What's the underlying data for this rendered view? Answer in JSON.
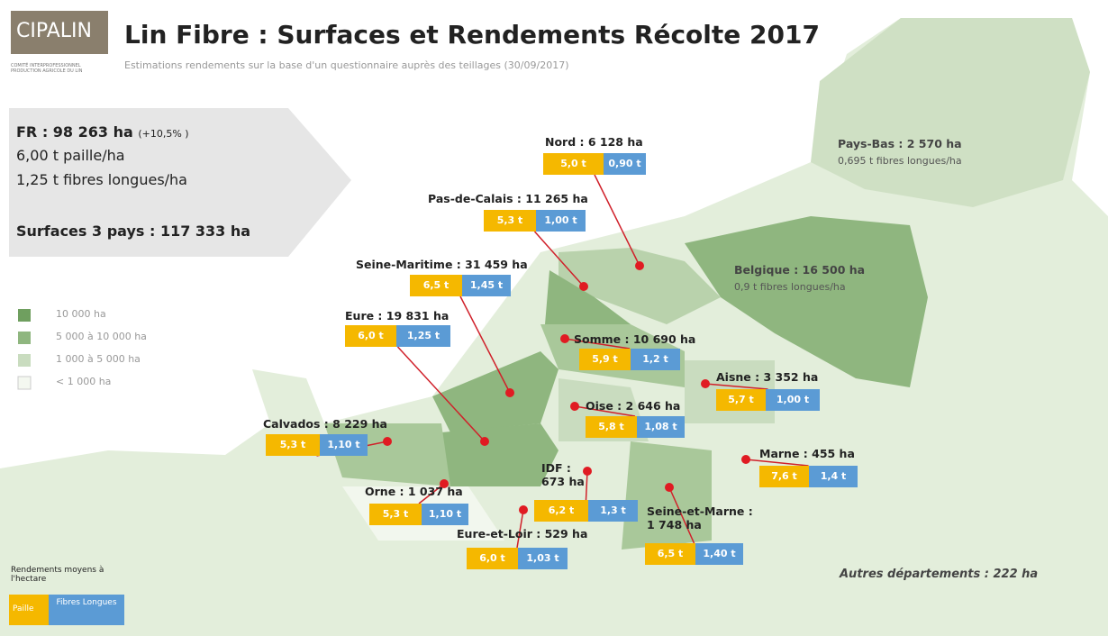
{
  "header": {
    "logo": "CIPALIN",
    "logo_sub": "COMITÉ INTERPROFESSIONNEL PRODUCTION AGRICOLE DU LIN",
    "title": "Lin Fibre : Surfaces et Rendements Récolte 2017",
    "subtitle": "Estimations rendements sur la base d'un questionnaire auprès des teillages (30/09/2017)"
  },
  "summary": {
    "fr": "FR : 98 263 ha",
    "fr_change": "(+10,5% )",
    "straw": "6,00 t paille/ha",
    "fibre": "1,25 t fibres longues/ha",
    "total": "Surfaces 3 pays : 117 333 ha"
  },
  "area_legend": [
    "10 000 ha",
    "5 000 à 10 000 ha",
    "1 000 à 5 000 ha",
    "< 1 000 ha"
  ],
  "yield_legend": {
    "title": "Rendements moyens à l'hectare",
    "straw": "Paille",
    "fibre": "Fibres Longues"
  },
  "countries": [
    {
      "label": "Pays-Bas : 2 570 ha",
      "note": "0,695 t fibres longues/ha"
    },
    {
      "label": "Belgique : 16 500 ha",
      "note": "0,9 t fibres longues/ha"
    }
  ],
  "departments": [
    {
      "label": "Nord : 6 128 ha",
      "straw": "5,0 t",
      "fibre": "0,90 t"
    },
    {
      "label": "Pas-de-Calais : 11 265 ha",
      "straw": "5,3 t",
      "fibre": "1,00 t"
    },
    {
      "label": "Seine-Maritime : 31 459 ha",
      "straw": "6,5 t",
      "fibre": "1,45 t"
    },
    {
      "label": "Eure : 19 831 ha",
      "straw": "6,0 t",
      "fibre": "1,25 t"
    },
    {
      "label": "Somme : 10 690 ha",
      "straw": "5,9 t",
      "fibre": "1,2 t"
    },
    {
      "label": "Aisne : 3 352 ha",
      "straw": "5,7 t",
      "fibre": "1,00 t"
    },
    {
      "label": "Oise : 2 646 ha",
      "straw": "5,8 t",
      "fibre": "1,08 t"
    },
    {
      "label": "Calvados : 8 229 ha",
      "straw": "5,3 t",
      "fibre": "1,10 t"
    },
    {
      "label": "Marne : 455 ha",
      "straw": "7,6 t",
      "fibre": "1,4 t"
    },
    {
      "label": "Orne : 1 037 ha",
      "straw": "5,3 t",
      "fibre": "1,10 t"
    },
    {
      "label": "IDF : 673 ha",
      "straw": "6,2 t",
      "fibre": "1,3 t"
    },
    {
      "label": "Eure-et-Loir : 529 ha",
      "straw": "6,0 t",
      "fibre": "1,03 t"
    },
    {
      "label": "Seine-et-Marne : 1 748 ha",
      "straw": "6,5 t",
      "fibre": "1,40 t"
    }
  ],
  "others": "Autres départements : 222 ha"
}
